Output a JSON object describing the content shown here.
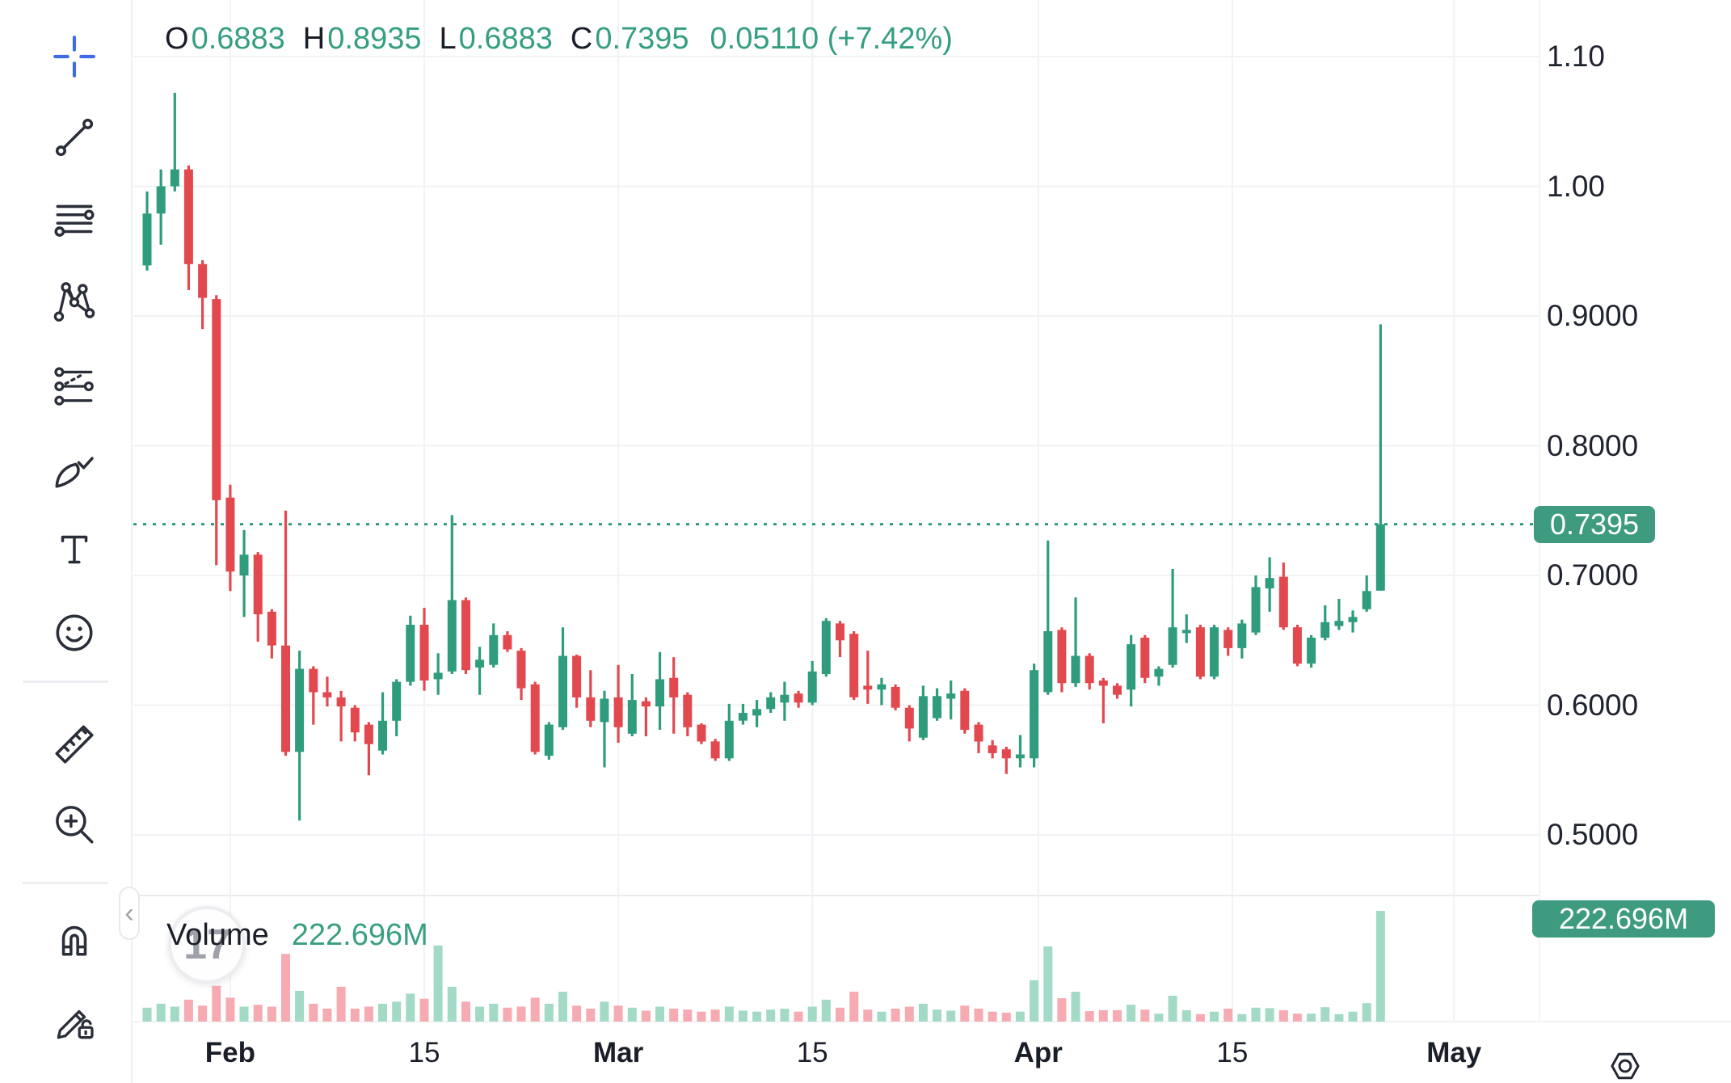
{
  "legend": {
    "items": [
      {
        "label": "O",
        "value": "0.6883"
      },
      {
        "label": "H",
        "value": "0.8935"
      },
      {
        "label": "L",
        "value": "0.6883"
      },
      {
        "label": "C",
        "value": "0.7395"
      }
    ],
    "change": "0.05110 (+7.42%)"
  },
  "volume_legend": {
    "label": "Volume",
    "value": "222.696M"
  },
  "badges": {
    "price": "0.7395",
    "volume": "222.696M"
  },
  "watermark": "17",
  "ui": {
    "collapse_chevron": "‹"
  },
  "toolbar": {
    "tools": [
      "crosshair",
      "trend-line",
      "horizontal-lines",
      "xabcd-pattern",
      "projection",
      "brush",
      "text",
      "emoji",
      "ruler",
      "zoom-in",
      "magnet",
      "drawing-lock"
    ]
  },
  "axes": {
    "price_ticks": [
      {
        "label": "1.10",
        "price": 1.1
      },
      {
        "label": "1.00",
        "price": 1.0
      },
      {
        "label": "0.9000",
        "price": 0.9
      },
      {
        "label": "0.8000",
        "price": 0.8
      },
      {
        "label": "0.7000",
        "price": 0.7
      },
      {
        "label": "0.6000",
        "price": 0.6
      },
      {
        "label": "0.5000",
        "price": 0.5
      }
    ],
    "time_ticks": [
      {
        "label": "Feb",
        "pos": 6.0,
        "major": true
      },
      {
        "label": "15",
        "pos": 20.0,
        "major": false
      },
      {
        "label": "Mar",
        "pos": 34.0,
        "major": true
      },
      {
        "label": "15",
        "pos": 48.0,
        "major": false
      },
      {
        "label": "Apr",
        "pos": 64.3,
        "major": true
      },
      {
        "label": "15",
        "pos": 78.3,
        "major": false
      },
      {
        "label": "May",
        "pos": 94.3,
        "major": true
      }
    ]
  },
  "chart_data": {
    "type": "candlestick+volume",
    "title": "",
    "legend_last_bar": {
      "open": 0.6883,
      "high": 0.8935,
      "low": 0.6883,
      "close": 0.7395,
      "change_abs": 0.0511,
      "change_pct": "+7.42%"
    },
    "price_line": 0.7395,
    "ylim": [
      0.4533,
      1.1436
    ],
    "volume_max_m": 222.696,
    "grid": true,
    "candles_ohlcv": [
      [
        0.939,
        0.996,
        0.935,
        0.979,
        28
      ],
      [
        0.979,
        1.013,
        0.955,
        1.0,
        36
      ],
      [
        1.0,
        1.072,
        0.996,
        1.013,
        30
      ],
      [
        1.013,
        1.016,
        0.92,
        0.94,
        44
      ],
      [
        0.94,
        0.943,
        0.89,
        0.914,
        32
      ],
      [
        0.913,
        0.916,
        0.708,
        0.758,
        72
      ],
      [
        0.76,
        0.77,
        0.688,
        0.703,
        48
      ],
      [
        0.7,
        0.735,
        0.668,
        0.716,
        30
      ],
      [
        0.716,
        0.718,
        0.649,
        0.67,
        34
      ],
      [
        0.672,
        0.674,
        0.636,
        0.646,
        30
      ],
      [
        0.646,
        0.75,
        0.561,
        0.564,
        136
      ],
      [
        0.564,
        0.642,
        0.511,
        0.628,
        62
      ],
      [
        0.628,
        0.63,
        0.585,
        0.61,
        36
      ],
      [
        0.61,
        0.622,
        0.599,
        0.606,
        26
      ],
      [
        0.606,
        0.611,
        0.572,
        0.599,
        70
      ],
      [
        0.598,
        0.6,
        0.572,
        0.579,
        26
      ],
      [
        0.585,
        0.587,
        0.546,
        0.57,
        30
      ],
      [
        0.565,
        0.61,
        0.562,
        0.588,
        36
      ],
      [
        0.588,
        0.62,
        0.576,
        0.618,
        40
      ],
      [
        0.618,
        0.669,
        0.615,
        0.662,
        56
      ],
      [
        0.662,
        0.675,
        0.611,
        0.619,
        46
      ],
      [
        0.62,
        0.64,
        0.608,
        0.625,
        153
      ],
      [
        0.626,
        0.7465,
        0.624,
        0.681,
        70
      ],
      [
        0.681,
        0.683,
        0.624,
        0.627,
        40
      ],
      [
        0.629,
        0.645,
        0.608,
        0.635,
        30
      ],
      [
        0.631,
        0.663,
        0.629,
        0.654,
        36
      ],
      [
        0.654,
        0.657,
        0.641,
        0.643,
        28
      ],
      [
        0.642,
        0.644,
        0.604,
        0.613,
        30
      ],
      [
        0.616,
        0.618,
        0.562,
        0.564,
        48
      ],
      [
        0.561,
        0.587,
        0.558,
        0.585,
        36
      ],
      [
        0.583,
        0.66,
        0.581,
        0.638,
        60
      ],
      [
        0.638,
        0.639,
        0.598,
        0.606,
        32
      ],
      [
        0.606,
        0.627,
        0.583,
        0.588,
        26
      ],
      [
        0.587,
        0.611,
        0.552,
        0.605,
        40
      ],
      [
        0.606,
        0.631,
        0.571,
        0.583,
        32
      ],
      [
        0.578,
        0.624,
        0.576,
        0.604,
        28
      ],
      [
        0.603,
        0.606,
        0.576,
        0.599,
        22
      ],
      [
        0.599,
        0.641,
        0.581,
        0.62,
        30
      ],
      [
        0.621,
        0.637,
        0.578,
        0.606,
        26
      ],
      [
        0.608,
        0.61,
        0.576,
        0.583,
        24
      ],
      [
        0.585,
        0.586,
        0.57,
        0.572,
        20
      ],
      [
        0.572,
        0.574,
        0.557,
        0.559,
        24
      ],
      [
        0.559,
        0.601,
        0.557,
        0.588,
        30
      ],
      [
        0.588,
        0.601,
        0.585,
        0.594,
        22
      ],
      [
        0.592,
        0.604,
        0.583,
        0.597,
        20
      ],
      [
        0.597,
        0.61,
        0.594,
        0.606,
        24
      ],
      [
        0.602,
        0.618,
        0.588,
        0.608,
        26
      ],
      [
        0.609,
        0.611,
        0.598,
        0.602,
        20
      ],
      [
        0.602,
        0.634,
        0.6,
        0.626,
        30
      ],
      [
        0.624,
        0.667,
        0.622,
        0.665,
        44
      ],
      [
        0.663,
        0.665,
        0.637,
        0.65,
        28
      ],
      [
        0.655,
        0.657,
        0.604,
        0.606,
        60
      ],
      [
        0.615,
        0.642,
        0.601,
        0.612,
        24
      ],
      [
        0.612,
        0.621,
        0.6,
        0.616,
        20
      ],
      [
        0.614,
        0.616,
        0.596,
        0.598,
        26
      ],
      [
        0.598,
        0.6,
        0.572,
        0.582,
        30
      ],
      [
        0.575,
        0.615,
        0.573,
        0.607,
        36
      ],
      [
        0.59,
        0.613,
        0.588,
        0.607,
        24
      ],
      [
        0.605,
        0.619,
        0.589,
        0.609,
        22
      ],
      [
        0.611,
        0.613,
        0.578,
        0.581,
        32
      ],
      [
        0.585,
        0.587,
        0.563,
        0.572,
        26
      ],
      [
        0.569,
        0.573,
        0.559,
        0.563,
        20
      ],
      [
        0.566,
        0.568,
        0.547,
        0.559,
        18
      ],
      [
        0.559,
        0.577,
        0.552,
        0.562,
        20
      ],
      [
        0.559,
        0.632,
        0.552,
        0.627,
        83
      ],
      [
        0.61,
        0.727,
        0.608,
        0.657,
        151
      ],
      [
        0.658,
        0.66,
        0.61,
        0.617,
        47
      ],
      [
        0.617,
        0.683,
        0.614,
        0.638,
        60
      ],
      [
        0.638,
        0.64,
        0.612,
        0.617,
        21
      ],
      [
        0.619,
        0.621,
        0.586,
        0.615,
        23
      ],
      [
        0.615,
        0.617,
        0.605,
        0.608,
        23
      ],
      [
        0.612,
        0.654,
        0.599,
        0.647,
        34
      ],
      [
        0.652,
        0.654,
        0.617,
        0.621,
        24
      ],
      [
        0.622,
        0.63,
        0.615,
        0.628,
        16
      ],
      [
        0.631,
        0.705,
        0.629,
        0.66,
        52
      ],
      [
        0.656,
        0.67,
        0.648,
        0.658,
        23
      ],
      [
        0.66,
        0.662,
        0.62,
        0.622,
        15
      ],
      [
        0.622,
        0.662,
        0.62,
        0.66,
        20
      ],
      [
        0.658,
        0.66,
        0.638,
        0.644,
        26
      ],
      [
        0.644,
        0.666,
        0.636,
        0.663,
        15
      ],
      [
        0.656,
        0.7,
        0.654,
        0.691,
        28
      ],
      [
        0.69,
        0.714,
        0.672,
        0.698,
        27
      ],
      [
        0.699,
        0.71,
        0.658,
        0.66,
        23
      ],
      [
        0.66,
        0.662,
        0.63,
        0.632,
        16
      ],
      [
        0.632,
        0.654,
        0.629,
        0.652,
        16
      ],
      [
        0.652,
        0.677,
        0.65,
        0.664,
        29
      ],
      [
        0.661,
        0.682,
        0.658,
        0.665,
        15
      ],
      [
        0.664,
        0.673,
        0.656,
        0.668,
        20
      ],
      [
        0.674,
        0.7,
        0.672,
        0.688,
        37
      ],
      [
        0.6883,
        0.8935,
        0.6883,
        0.7395,
        222.696
      ]
    ]
  },
  "colors": {
    "up": "#2E9C7D",
    "down": "#E2494F",
    "vol_up": "#A2DAC5",
    "vol_down": "#F5ABB1",
    "badge": "#3E9B80",
    "price_line": "#2E9C7C",
    "grid": "#F0F2F5",
    "separator": "#E9EBEE",
    "crosshair_blue": "#3F6AE8",
    "text_dark": "#1A1E29",
    "value_green": "#359E82"
  }
}
